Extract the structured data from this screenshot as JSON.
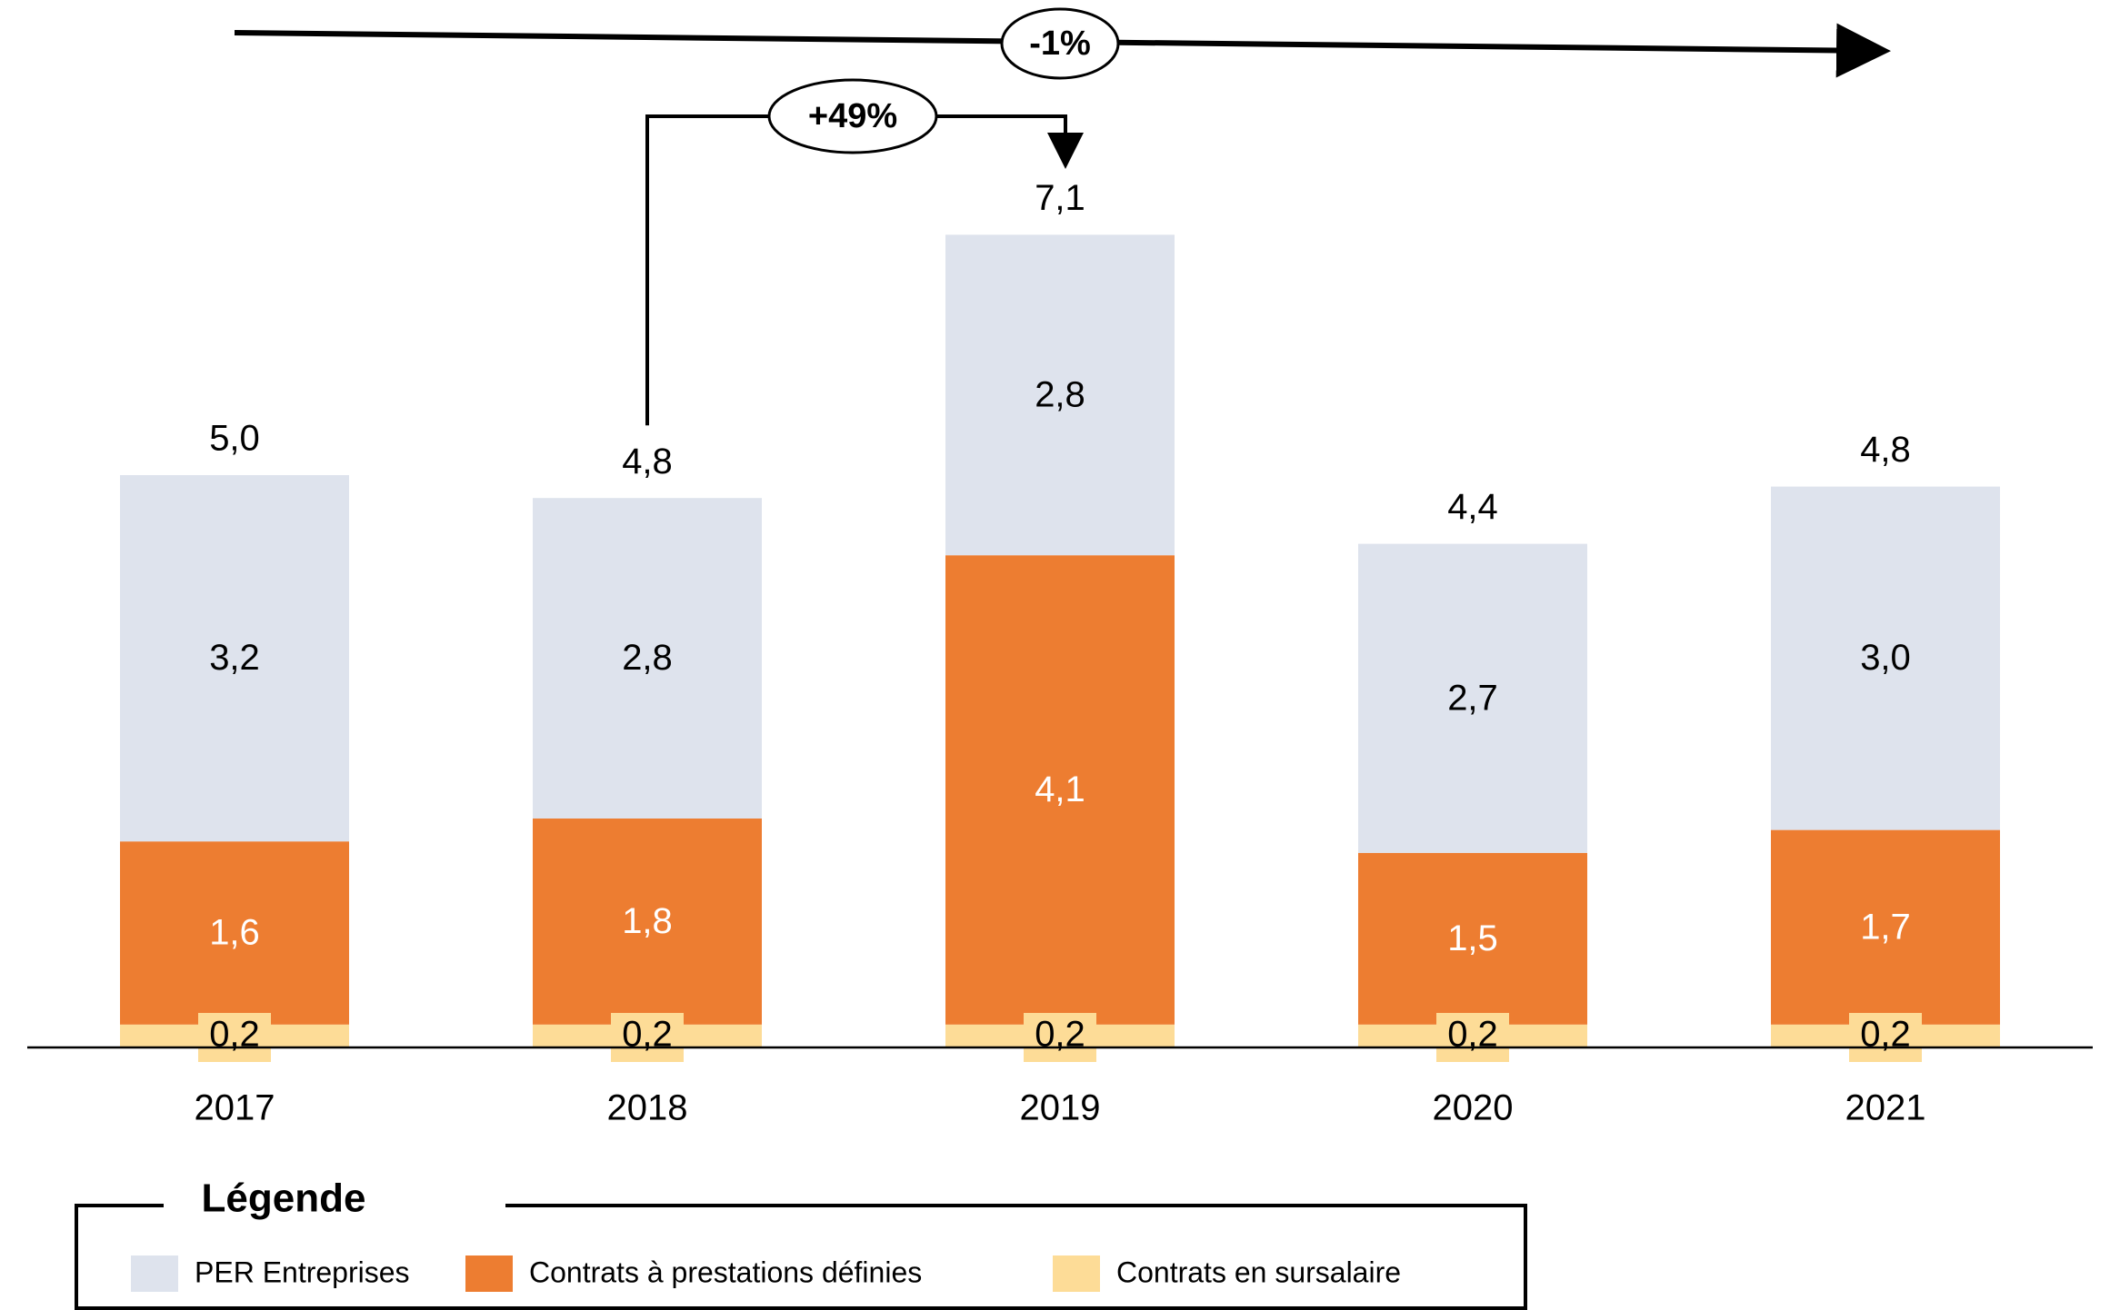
{
  "chart_data": {
    "type": "bar",
    "stacked": true,
    "categories": [
      "2017",
      "2018",
      "2019",
      "2020",
      "2021"
    ],
    "series": [
      {
        "name": "Contrats en sursalaire",
        "color": "#fddc97",
        "values": [
          0.2,
          0.2,
          0.2,
          0.2,
          0.2
        ],
        "labels": [
          "0,2",
          "0,2",
          "0,2",
          "0,2",
          "0,2"
        ]
      },
      {
        "name": "Contrats à prestations définies",
        "color": "#ed7d31",
        "values": [
          1.6,
          1.8,
          4.1,
          1.5,
          1.7
        ],
        "labels": [
          "1,6",
          "1,8",
          "4,1",
          "1,5",
          "1,7"
        ]
      },
      {
        "name": "PER Entreprises",
        "color": "#dee3ed",
        "values": [
          3.2,
          2.8,
          2.8,
          2.7,
          3.0
        ],
        "labels": [
          "3,2",
          "2,8",
          "2,8",
          "2,7",
          "3,0"
        ]
      }
    ],
    "totals": [
      5.0,
      4.8,
      7.1,
      4.4,
      4.8
    ],
    "total_labels": [
      "5,0",
      "4,8",
      "7,1",
      "4,4",
      "4,8"
    ],
    "annotations": [
      {
        "text": "-1%",
        "from": "2017",
        "to": "2021"
      },
      {
        "text": "+49%",
        "from": "2018",
        "to": "2019"
      }
    ],
    "title": "",
    "xlabel": "",
    "ylabel": "",
    "ylim": [
      0,
      8
    ],
    "grid": false,
    "legend": {
      "title": "Légende",
      "position": "bottom-left",
      "items": [
        "PER Entreprises",
        "Contrats à prestations définies",
        "Contrats en sursalaire"
      ]
    }
  }
}
